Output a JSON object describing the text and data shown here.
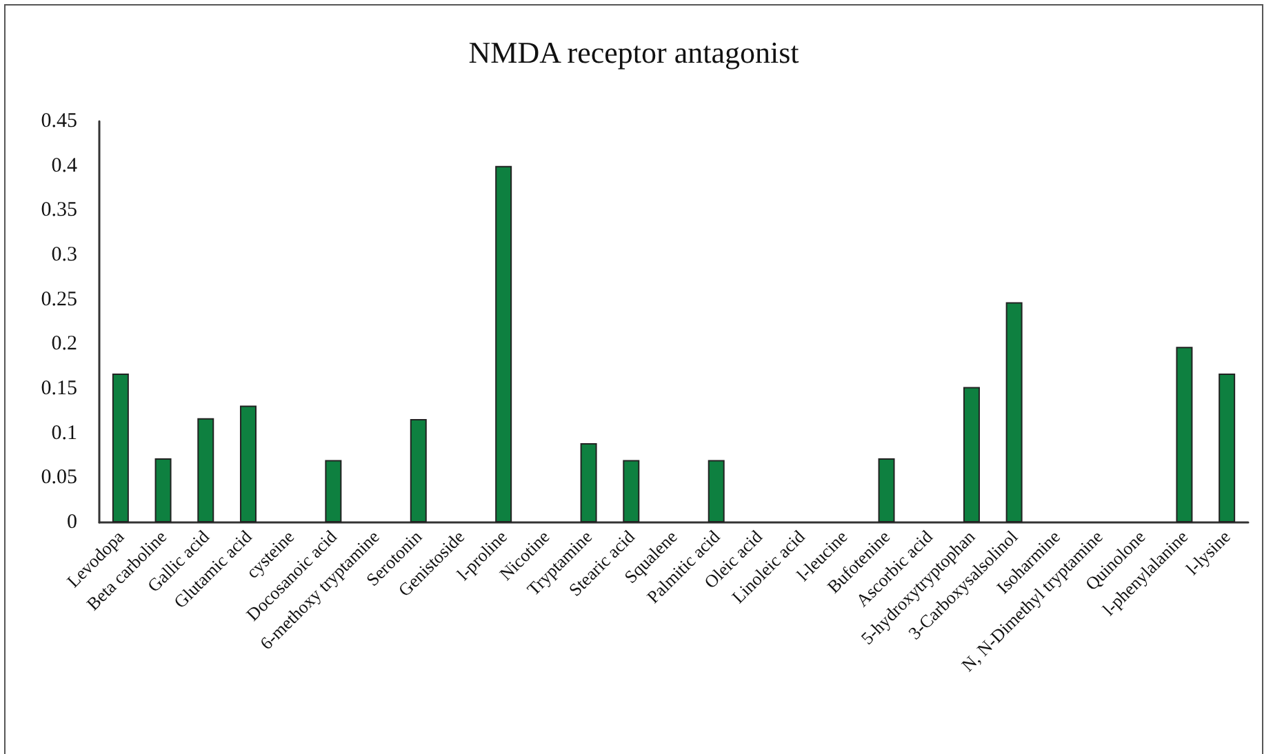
{
  "chart_data": {
    "type": "bar",
    "title": "NMDA receptor antagonist",
    "categories": [
      "Levodopa",
      "Beta carboline",
      "Gallic acid",
      "Glutamic acid",
      "cysteine",
      "Docosanoic acid",
      "6-methoxy tryptamine",
      "Serotonin",
      "Genistoside",
      "l-proline",
      "Nicotine",
      "Tryptamine",
      "Stearic acid",
      "Squalene",
      "Palmitic acid",
      "Oleic acid",
      "Linoleic acid",
      "l-leucine",
      "Bufotenine",
      "Ascorbic acid",
      "5-hydroxytryptophan",
      "3-Carboxysalsolinol",
      "Isoharmine",
      "N, N-Dimethyl tryptamine",
      "Quinolone",
      "l-phenylalanine",
      "l-lysine"
    ],
    "values": [
      0.167,
      0.072,
      0.117,
      0.131,
      0,
      0.07,
      0,
      0.116,
      0,
      0.4,
      0,
      0.089,
      0.07,
      0,
      0.07,
      0,
      0,
      0,
      0.072,
      0,
      0.152,
      0.247,
      0,
      0,
      0,
      0.197,
      0.167
    ],
    "color": "#0e8040",
    "ylim": [
      0,
      0.45
    ],
    "yticks": [
      0,
      0.05,
      0.1,
      0.15,
      0.2,
      0.25,
      0.3,
      0.35,
      0.4,
      0.45
    ],
    "grid": false
  }
}
